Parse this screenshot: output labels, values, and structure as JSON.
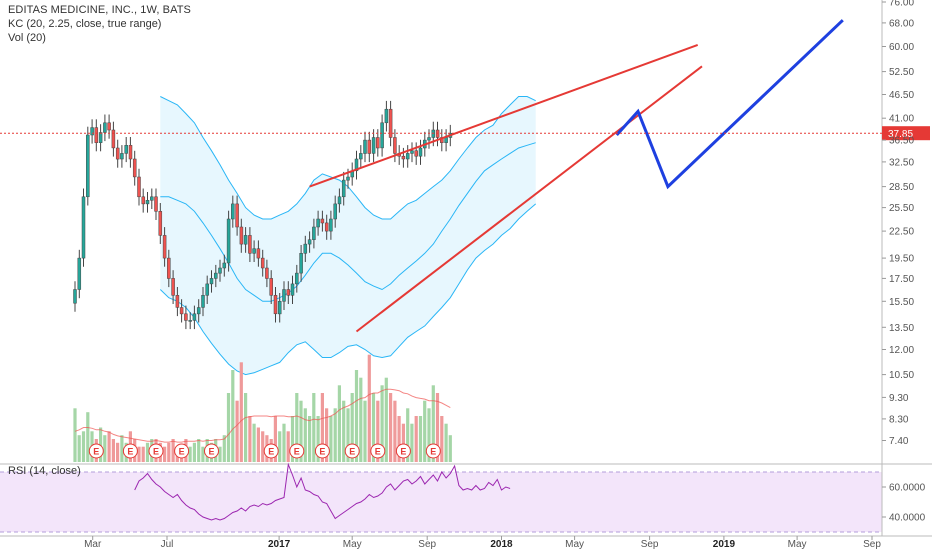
{
  "header": {
    "title": "EDITAS MEDICINE, INC., 1W, BATS",
    "indicator_kc": "KC (20, 2.25, close, true range)",
    "indicator_vol": "Vol (20)"
  },
  "rsi_panel": {
    "label": "RSI (14, close)",
    "ticks": [
      "60.0000",
      "40.0000"
    ],
    "values": [
      58,
      64,
      66,
      69,
      65,
      62,
      60,
      57,
      55,
      53,
      55,
      51,
      48,
      46,
      45,
      42,
      40,
      39,
      38,
      39,
      38,
      39,
      41,
      43,
      44,
      46,
      44,
      47,
      48,
      47,
      49,
      48,
      49,
      51,
      52,
      53,
      75,
      68,
      60,
      66,
      58,
      57,
      55,
      54,
      50,
      49,
      44,
      39,
      41,
      43,
      45,
      47,
      49,
      50,
      52,
      55,
      53,
      54,
      56,
      60,
      62,
      58,
      61,
      64,
      65,
      62,
      64,
      67,
      62,
      65,
      68,
      64,
      70,
      66,
      69,
      74,
      61,
      58,
      59,
      58,
      61,
      58,
      59,
      63,
      61,
      65,
      58,
      60,
      59
    ],
    "colors": {
      "line": "#9c27b0",
      "band": "#f3e5fa"
    }
  },
  "price_tag": {
    "value": "37.85",
    "color": "#e53935"
  },
  "earnings_marker": {
    "label": "E",
    "count": 12
  },
  "chart_data": {
    "type": "candlestick",
    "title": "EDITAS MEDICINE, INC., 1W, BATS",
    "interval": "1W",
    "y_scale": "log",
    "ylim": [
      6.6,
      76
    ],
    "price_axis_ticks": [
      "76.00",
      "68.00",
      "60.00",
      "52.50",
      "46.50",
      "41.00",
      "36.50",
      "32.50",
      "28.50",
      "25.50",
      "22.50",
      "19.50",
      "17.50",
      "15.50",
      "13.50",
      "12.00",
      "10.50",
      "9.30",
      "8.30",
      "7.40"
    ],
    "time_axis_labels": [
      {
        "text": "Mar",
        "type": "month"
      },
      {
        "text": "Jul",
        "type": "month"
      },
      {
        "text": "2017",
        "type": "year"
      },
      {
        "text": "May",
        "type": "month"
      },
      {
        "text": "Sep",
        "type": "month"
      },
      {
        "text": "2018",
        "type": "year"
      },
      {
        "text": "May",
        "type": "month"
      },
      {
        "text": "Sep",
        "type": "month"
      },
      {
        "text": "2019",
        "type": "year"
      },
      {
        "text": "May",
        "type": "month"
      },
      {
        "text": "Sep",
        "type": "month"
      }
    ],
    "closes": [
      16.5,
      19.5,
      27,
      37.5,
      39,
      36,
      38,
      40,
      38.5,
      35,
      33,
      34,
      35.5,
      33,
      30,
      27,
      26,
      26.5,
      27,
      25,
      22,
      19.5,
      17.5,
      16,
      15,
      14.5,
      14,
      14,
      14.5,
      15,
      16,
      17,
      17.5,
      18,
      18.5,
      19,
      24,
      26,
      23,
      21,
      22,
      20,
      20.5,
      19.5,
      18.5,
      17.5,
      16,
      14.5,
      15.5,
      16.5,
      16,
      17,
      18,
      20,
      21,
      21.5,
      23,
      24,
      23.5,
      22.5,
      24,
      26,
      27,
      29.5,
      30,
      31,
      33,
      34,
      36.5,
      34,
      37,
      35,
      40,
      43,
      37,
      34,
      33.5,
      33,
      34,
      34.5,
      33.5,
      35,
      36.5,
      37,
      38.5,
      37,
      36,
      37,
      37.85
    ],
    "colors": {
      "up": "#26a69a",
      "down": "#ef5350"
    },
    "keltner": {
      "upper": [
        46,
        45,
        44,
        42,
        40,
        37,
        34.5,
        32,
        29.5,
        27.5,
        25.5,
        24.5,
        24,
        24,
        24.5,
        25,
        26,
        27.5,
        29.5,
        30.5,
        30,
        29.5,
        28.5,
        27,
        25.5,
        24.5,
        24,
        24,
        25,
        26,
        26.5,
        27.5,
        28.5,
        29.5,
        31,
        33,
        35,
        37,
        38.5,
        39.5,
        42,
        44,
        46,
        46,
        45
      ],
      "basis": [
        27,
        27,
        26.5,
        26,
        25,
        23.5,
        22,
        20.5,
        19,
        17.5,
        16.5,
        16,
        15.5,
        15.5,
        15.8,
        16.2,
        16.8,
        17.8,
        19,
        20,
        20,
        19.5,
        18.8,
        18,
        17.2,
        16.8,
        16.5,
        17,
        17.8,
        18.5,
        19.2,
        20,
        21,
        22.5,
        24,
        25.8,
        27.5,
        29.3,
        31,
        32,
        33,
        34,
        35,
        35.5,
        36
      ],
      "lower": [
        16.5,
        15.8,
        15.5,
        15,
        14.2,
        13.2,
        12.4,
        11.7,
        11.1,
        10.7,
        10.5,
        10.6,
        10.8,
        11,
        11.2,
        11.8,
        12.3,
        12.5,
        12,
        11.5,
        11.5,
        11.8,
        12.2,
        12.3,
        12,
        11.6,
        11.5,
        11.6,
        12.2,
        12.8,
        13.2,
        13.6,
        14.3,
        15,
        15.8,
        17,
        18.3,
        19.5,
        20.3,
        21,
        22,
        22.8,
        24,
        25,
        26
      ],
      "colors": {
        "line": "#29b6f6",
        "fill": "#e1f5fe"
      }
    },
    "volume": {
      "values": [
        7,
        3.5,
        4,
        6.5,
        4,
        3,
        4.5,
        3.5,
        4,
        3,
        2.5,
        3.5,
        2.5,
        4,
        3,
        2,
        2,
        2.5,
        3,
        3,
        2.5,
        2,
        2.5,
        3,
        2,
        2,
        3,
        2,
        2.5,
        3,
        2,
        3,
        2.5,
        3,
        2,
        3.5,
        9,
        12,
        8,
        13,
        9,
        6,
        5,
        4.5,
        4,
        3.5,
        3,
        6,
        4,
        5,
        4,
        6,
        9,
        8,
        7,
        6,
        9,
        6,
        9,
        7,
        6,
        7,
        10,
        8,
        7,
        9,
        12,
        11,
        8,
        14,
        9,
        8,
        10,
        11,
        9,
        8,
        6,
        5,
        7,
        5,
        6,
        6,
        8,
        7,
        10,
        9,
        6,
        5,
        3.5
      ],
      "ma": [
        4,
        4.2,
        4.5,
        4.5,
        4.4,
        4.2,
        4.2,
        4,
        3.9,
        3.6,
        3.4,
        3.3,
        3.2,
        3.1,
        3,
        2.9,
        2.8,
        2.7,
        2.7,
        2.8,
        2.7,
        2.6,
        2.6,
        2.7,
        2.6,
        2.6,
        2.7,
        2.7,
        2.7,
        2.8,
        2.7,
        2.8,
        2.8,
        2.9,
        2.9,
        3,
        3.6,
        4.3,
        4.8,
        5.4,
        5.8,
        5.9,
        6,
        6,
        6,
        6,
        5.9,
        6,
        6,
        6,
        5.9,
        5.9,
        6,
        5.8,
        5.5,
        5.4,
        5.6,
        5.5,
        5.7,
        5.8,
        6,
        6.3,
        6.8,
        7.1,
        7.3,
        7.6,
        8,
        8.3,
        8.4,
        8.8,
        9,
        9,
        9.3,
        9.5,
        9.5,
        9.4,
        9.3,
        9,
        8.9,
        8.6,
        8.4,
        8.3,
        8.2,
        8,
        8,
        7.9,
        7.7,
        7.4,
        7.1
      ],
      "colors": {
        "up": "#a5d6a7",
        "down": "#ef9a9a",
        "ma": "#ef5350"
      }
    },
    "trendlines": {
      "color": "#e53935",
      "upper": [
        {
          "date": "2017-02-20",
          "price": 28.5
        },
        {
          "date": "2018-11-19",
          "price": 60.5
        }
      ],
      "lower": [
        {
          "date": "2017-05-08",
          "price": 13.2
        },
        {
          "date": "2018-11-26",
          "price": 54
        }
      ]
    },
    "projection": {
      "color": "#1e40e0",
      "points": [
        {
          "date": "2018-07-09",
          "price": 37.5
        },
        {
          "date": "2018-08-13",
          "price": 42.5
        },
        {
          "date": "2018-10-01",
          "price": 28.5
        },
        {
          "date": "2019-07-15",
          "price": 69
        }
      ]
    }
  }
}
